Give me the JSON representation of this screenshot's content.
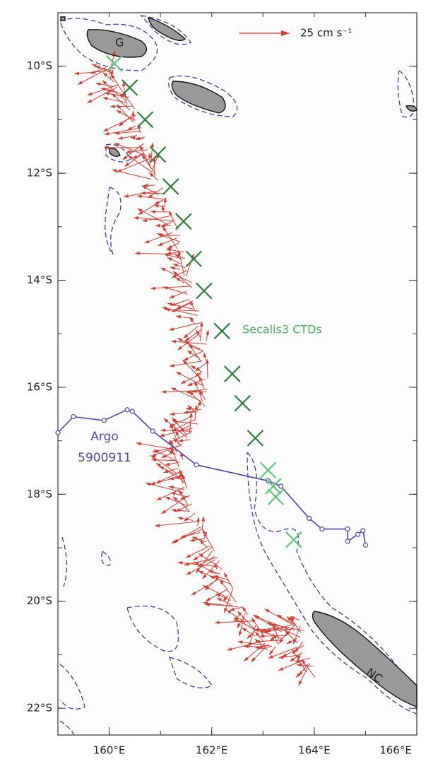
{
  "map": {
    "xlim": [
      159,
      166
    ],
    "ylim": [
      -22.5,
      -9
    ],
    "xticks": [
      {
        "value": 160,
        "label": "160°E"
      },
      {
        "value": 162,
        "label": "162°E"
      },
      {
        "value": 164,
        "label": "164°E"
      },
      {
        "value": 166,
        "label": "166°E"
      }
    ],
    "yticks": [
      {
        "value": -10,
        "label": "10°S"
      },
      {
        "value": -12,
        "label": "12°S"
      },
      {
        "value": -14,
        "label": "14°S"
      },
      {
        "value": -16,
        "label": "16°S"
      },
      {
        "value": -18,
        "label": "18°S"
      },
      {
        "value": -20,
        "label": "20°S"
      },
      {
        "value": -22,
        "label": "22°S"
      }
    ],
    "scale_label": "25 cm s⁻¹",
    "island_labels": [
      "G",
      "NC"
    ],
    "ctd": {
      "name": "Secalis3 CTDs",
      "color": "#2e7d3e",
      "light_color": "#5cc77a",
      "lon": [
        160.1,
        160.4,
        160.7,
        160.95,
        161.2,
        161.45,
        161.65,
        161.85,
        162.2,
        162.4,
        162.6,
        162.85,
        163.1,
        163.2,
        163.25,
        163.6
      ],
      "lat": [
        -9.95,
        -10.4,
        -11.0,
        -11.65,
        -12.25,
        -12.9,
        -13.6,
        -14.2,
        -14.95,
        -15.75,
        -16.3,
        -16.95,
        -17.55,
        -17.85,
        -18.05,
        -18.85
      ],
      "light": [
        true,
        false,
        false,
        false,
        false,
        false,
        false,
        false,
        false,
        false,
        false,
        false,
        true,
        true,
        true,
        true
      ]
    },
    "argo": {
      "name": [
        "Argo",
        "5900911"
      ],
      "color": "#4a4aa8",
      "lon": [
        159.0,
        159.3,
        159.9,
        160.35,
        160.45,
        160.85,
        161.7,
        163.1,
        163.35,
        163.9,
        164.15,
        164.65,
        164.65,
        164.85,
        164.95,
        165.0
      ],
      "lat": [
        -16.85,
        -16.55,
        -16.62,
        -16.42,
        -16.45,
        -16.82,
        -17.45,
        -17.75,
        -17.85,
        -18.45,
        -18.65,
        -18.65,
        -18.88,
        -18.75,
        -18.68,
        -18.95
      ]
    }
  }
}
